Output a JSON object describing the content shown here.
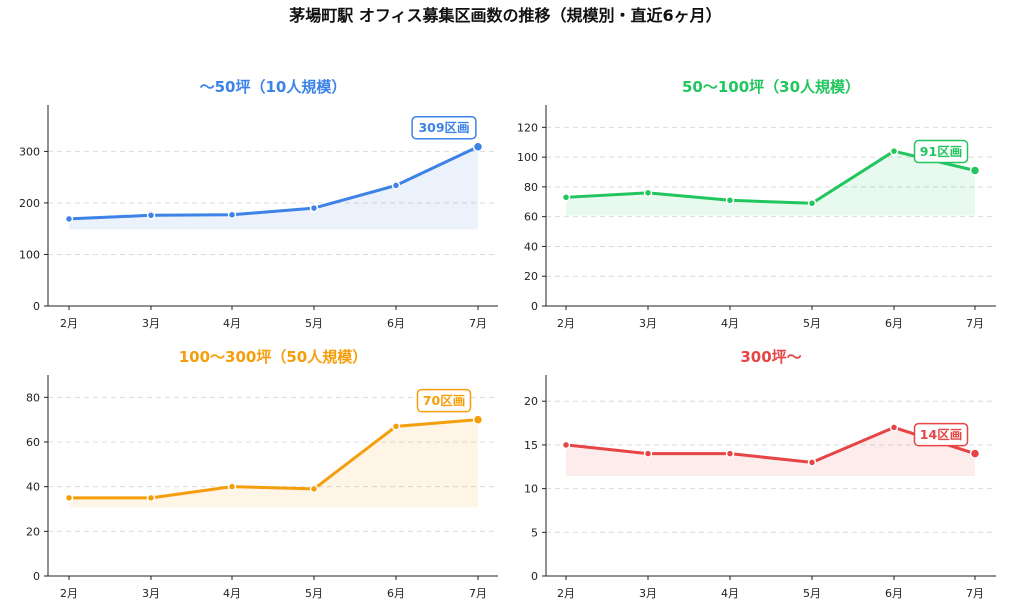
{
  "figure": {
    "title": "茅場町駅 オフィス募集区画数の推移（規模別・直近6ヶ月）"
  },
  "chart_data": [
    {
      "type": "area",
      "title": "〜50坪（10人規模）",
      "color": "#3d82e6",
      "categories": [
        "2月",
        "3月",
        "4月",
        "5月",
        "6月",
        "7月"
      ],
      "values": [
        169,
        176,
        177,
        190,
        234,
        309
      ],
      "yticks": [
        0,
        100,
        200,
        300
      ],
      "ylim": [
        0,
        390
      ],
      "annotation": "309区画",
      "grid": true
    },
    {
      "type": "area",
      "title": "50〜100坪（30人規模）",
      "color": "#22c55e",
      "categories": [
        "2月",
        "3月",
        "4月",
        "5月",
        "6月",
        "7月"
      ],
      "values": [
        73,
        76,
        71,
        69,
        104,
        91
      ],
      "yticks": [
        0,
        20,
        40,
        60,
        80,
        100,
        120
      ],
      "ylim": [
        0,
        135
      ],
      "annotation": "91区画",
      "grid": true
    },
    {
      "type": "area",
      "title": "100〜300坪（50人規模）",
      "color": "#f59e0b",
      "categories": [
        "2月",
        "3月",
        "4月",
        "5月",
        "6月",
        "7月"
      ],
      "values": [
        35,
        35,
        40,
        39,
        67,
        70
      ],
      "yticks": [
        0,
        20,
        40,
        60,
        80
      ],
      "ylim": [
        0,
        90
      ],
      "annotation": "70区画",
      "grid": true
    },
    {
      "type": "area",
      "title": "300坪〜",
      "color": "#e74545",
      "categories": [
        "2月",
        "3月",
        "4月",
        "5月",
        "6月",
        "7月"
      ],
      "values": [
        15,
        14,
        14,
        13,
        17,
        14
      ],
      "yticks": [
        0,
        5,
        10,
        15,
        20
      ],
      "ylim": [
        0,
        23
      ],
      "annotation": "14区画",
      "grid": true
    }
  ]
}
